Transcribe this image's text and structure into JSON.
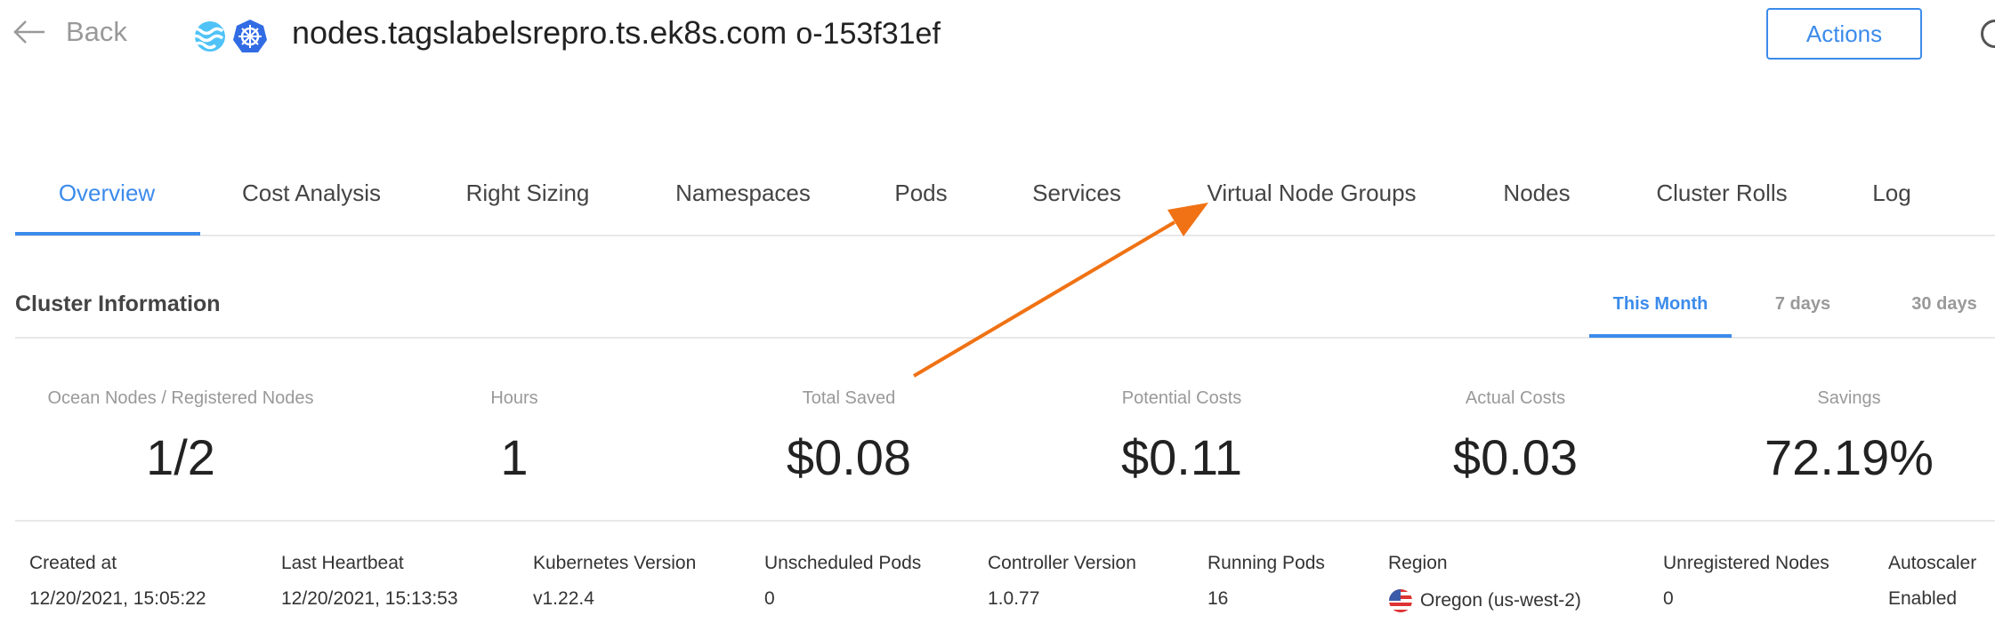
{
  "header": {
    "back_label": "Back",
    "cluster_name": "nodes.tagslabelsrepro.ts.ek8s.com",
    "cluster_id": "o-153f31ef",
    "actions_label": "Actions",
    "icons": [
      "ocean-logo-icon",
      "kubernetes-icon"
    ]
  },
  "tabs": [
    {
      "label": "Overview",
      "active": true
    },
    {
      "label": "Cost Analysis"
    },
    {
      "label": "Right Sizing"
    },
    {
      "label": "Namespaces"
    },
    {
      "label": "Pods"
    },
    {
      "label": "Services"
    },
    {
      "label": "Virtual Node Groups"
    },
    {
      "label": "Nodes"
    },
    {
      "label": "Cluster Rolls"
    },
    {
      "label": "Log"
    }
  ],
  "section": {
    "title": "Cluster Information",
    "time_tabs": [
      {
        "label": "This Month",
        "active": true
      },
      {
        "label": "7 days"
      },
      {
        "label": "30 days"
      }
    ]
  },
  "stats": [
    {
      "label": "Ocean Nodes / Registered Nodes",
      "value": "1/2"
    },
    {
      "label": "Hours",
      "value": "1"
    },
    {
      "label": "Total Saved",
      "value": "$0.08"
    },
    {
      "label": "Potential Costs",
      "value": "$0.11"
    },
    {
      "label": "Actual Costs",
      "value": "$0.03"
    },
    {
      "label": "Savings",
      "value": "72.19%"
    }
  ],
  "details": [
    {
      "label": "Created at",
      "value": "12/20/2021, 15:05:22"
    },
    {
      "label": "Last Heartbeat",
      "value": "12/20/2021, 15:13:53"
    },
    {
      "label": "Kubernetes Version",
      "value": "v1.22.4"
    },
    {
      "label": "Unscheduled Pods",
      "value": "0"
    },
    {
      "label": "Controller Version",
      "value": "1.0.77"
    },
    {
      "label": "Running Pods",
      "value": "16"
    },
    {
      "label": "Region",
      "value": "Oregon (us-west-2)"
    },
    {
      "label": "Unregistered Nodes",
      "value": "0"
    },
    {
      "label": "Autoscaler",
      "value": "Enabled"
    }
  ],
  "colors": {
    "accent": "#3b8beb",
    "annotation_arrow": "#f07214"
  }
}
